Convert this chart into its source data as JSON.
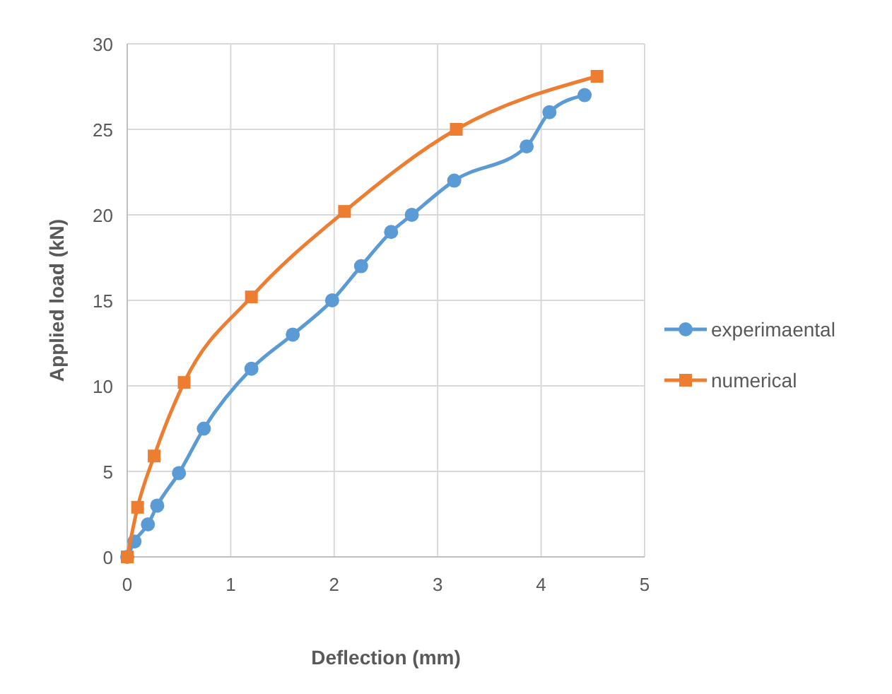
{
  "chart_data": {
    "type": "line",
    "xlabel": "Deflection (mm)",
    "ylabel": "Applied load (kN)",
    "xlim": [
      0,
      5
    ],
    "ylim": [
      0,
      30
    ],
    "xticks": [
      0,
      1,
      2,
      3,
      4,
      5
    ],
    "yticks": [
      0,
      5,
      10,
      15,
      20,
      25,
      30
    ],
    "grid": true,
    "legend": "right",
    "series": [
      {
        "name": "experimaental",
        "color": "#5b9bd5",
        "marker": "circle",
        "x": [
          0,
          0.07,
          0.2,
          0.29,
          0.5,
          0.74,
          1.2,
          1.6,
          1.98,
          2.26,
          2.55,
          2.75,
          3.16,
          3.86,
          4.08,
          4.42
        ],
        "values": [
          0,
          0.9,
          1.9,
          3,
          4.9,
          7.5,
          11,
          13,
          15,
          17,
          19,
          20,
          22,
          24,
          26,
          27
        ]
      },
      {
        "name": "numerical",
        "color": "#ed7d31",
        "marker": "square",
        "x": [
          0,
          0.1,
          0.26,
          0.55,
          1.2,
          2.1,
          3.18,
          4.54
        ],
        "values": [
          0,
          2.9,
          5.9,
          10.2,
          15.2,
          20.2,
          25,
          28.1
        ]
      }
    ]
  }
}
